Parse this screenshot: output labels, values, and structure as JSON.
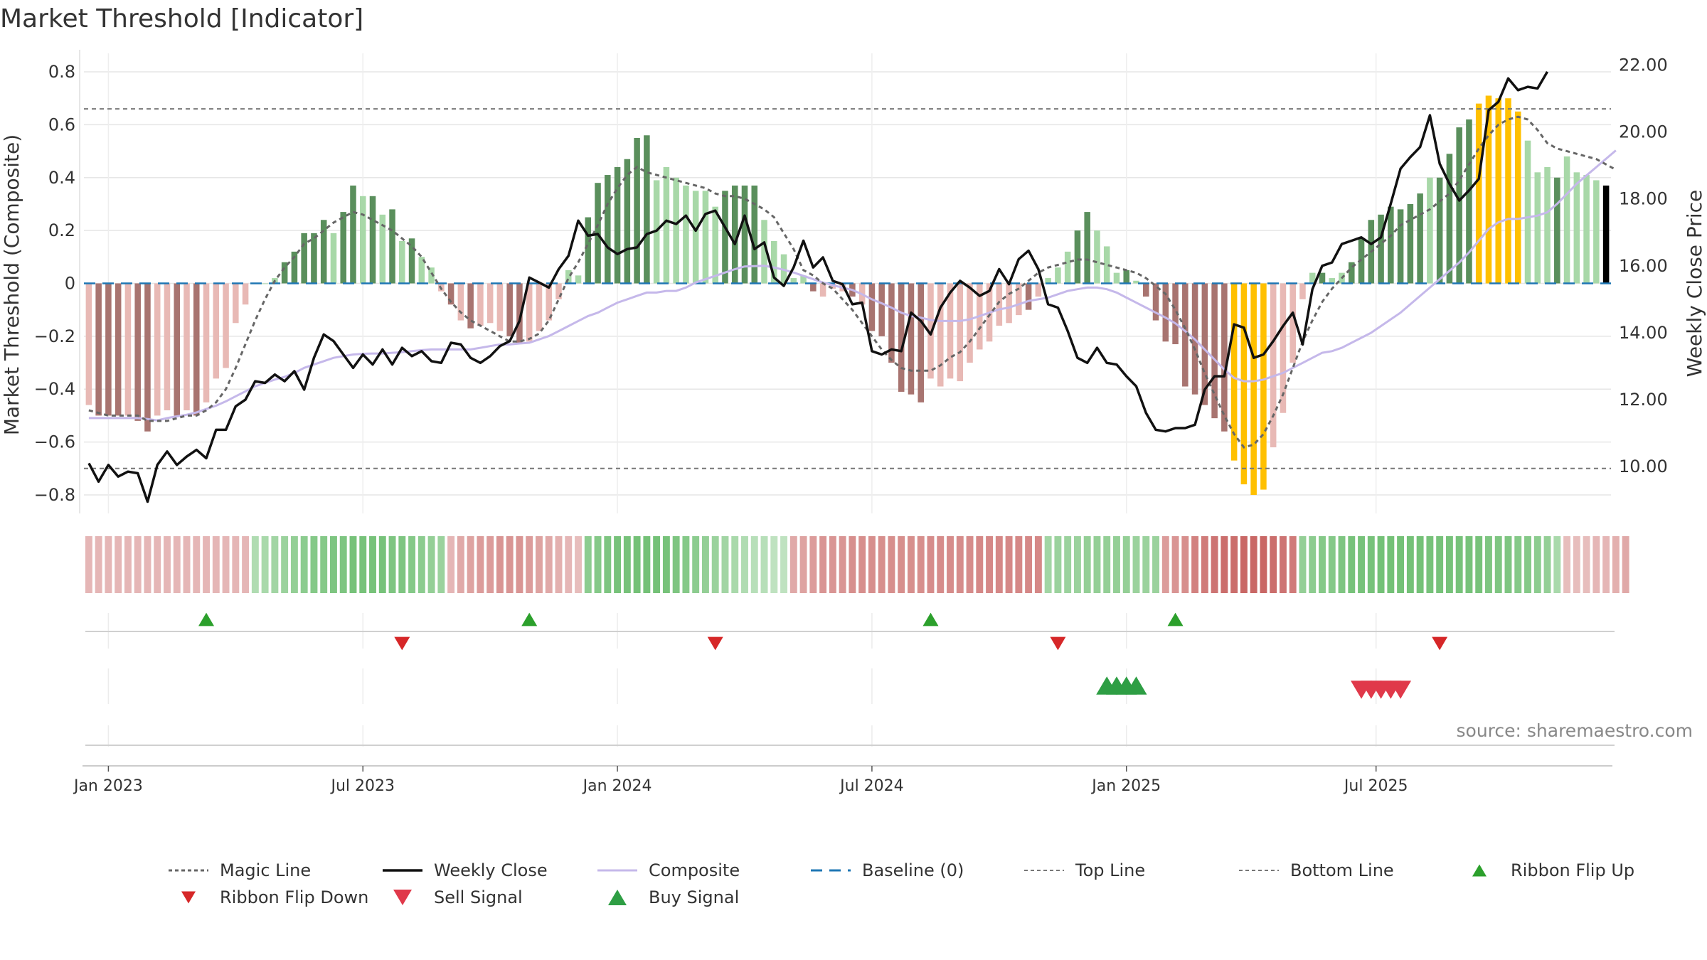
{
  "title": "Market Threshold [Indicator]",
  "source": "source: sharemaestro.com",
  "colors": {
    "bull_dark": "#5a8f5c",
    "bull_light": "#a8d8a8",
    "bear_dark": "#a87470",
    "bear_light": "#e8b9b5",
    "extreme": "#ffc000",
    "weekly_close": "#111111",
    "composite_line": "#c5b8ea",
    "magic_line": "#666666",
    "baseline": "#1f77b4",
    "threshold_lines": "#777777",
    "flip_up": "#2ca02c",
    "flip_down": "#d62728",
    "sell": "#e0394a",
    "buy": "#2e9e44"
  },
  "chart_data": {
    "type": "bar",
    "title": "Market Threshold [Indicator]",
    "ylabel": "Market Threshold (Composite)",
    "y2label": "Weekly Close Price",
    "ylim": [
      -0.87,
      0.87
    ],
    "y2lim": [
      8.6,
      22.35
    ],
    "yticks": [
      {
        "value": 0.8,
        "label": "0.8"
      },
      {
        "value": 0.6,
        "label": "0.6"
      },
      {
        "value": 0.4,
        "label": "0.4"
      },
      {
        "value": 0.2,
        "label": "0.2"
      },
      {
        "value": 0,
        "label": "0"
      },
      {
        "value": -0.2,
        "label": "−0.2"
      },
      {
        "value": -0.4,
        "label": "−0.4"
      },
      {
        "value": -0.6,
        "label": "−0.6"
      },
      {
        "value": -0.8,
        "label": "−0.8"
      }
    ],
    "y2ticks": [
      {
        "value": 22,
        "label": "22.00"
      },
      {
        "value": 20,
        "label": "20.00"
      },
      {
        "value": 18,
        "label": "18.00"
      },
      {
        "value": 16,
        "label": "16.00"
      },
      {
        "value": 14,
        "label": "14.00"
      },
      {
        "value": 12,
        "label": "12.00"
      },
      {
        "value": 10,
        "label": "10.00"
      }
    ],
    "xticks": [
      {
        "week": 2,
        "label": "Jan 2023"
      },
      {
        "week": 28,
        "label": "Jul 2023"
      },
      {
        "week": 54,
        "label": "Jan 2024"
      },
      {
        "week": 80,
        "label": "Jul 2024"
      },
      {
        "week": 106,
        "label": "Jan 2025"
      },
      {
        "week": 131.5,
        "label": "Jul 2025"
      }
    ],
    "grid": true,
    "legend_position": "bottom",
    "top_line": 0.66,
    "bottom_line": -0.7,
    "baseline": 0,
    "composite": [
      -0.46,
      -0.5,
      -0.5,
      -0.5,
      -0.5,
      -0.52,
      -0.56,
      -0.5,
      -0.48,
      -0.5,
      -0.48,
      -0.5,
      -0.45,
      -0.36,
      -0.32,
      -0.15,
      -0.08,
      0,
      0,
      0.02,
      0.08,
      0.12,
      0.19,
      0.19,
      0.24,
      0.19,
      0.27,
      0.37,
      0.33,
      0.33,
      0.26,
      0.28,
      0.16,
      0.17,
      0.1,
      0.06,
      -0.03,
      -0.08,
      -0.14,
      -0.17,
      -0.16,
      -0.15,
      -0.18,
      -0.2,
      -0.23,
      -0.22,
      -0.18,
      -0.14,
      -0.06,
      0.05,
      0.03,
      0.25,
      0.38,
      0.41,
      0.44,
      0.47,
      0.55,
      0.56,
      0.39,
      0.44,
      0.4,
      0.37,
      0.35,
      0.35,
      0.29,
      0.35,
      0.37,
      0.37,
      0.37,
      0.24,
      0.16,
      0.11,
      0.02,
      0.03,
      -0.03,
      -0.05,
      -0.02,
      -0.03,
      -0.05,
      -0.08,
      -0.18,
      -0.2,
      -0.3,
      -0.41,
      -0.42,
      -0.45,
      -0.36,
      -0.39,
      -0.36,
      -0.37,
      -0.3,
      -0.25,
      -0.22,
      -0.16,
      -0.15,
      -0.12,
      -0.1,
      -0.05,
      0.02,
      0.06,
      0.12,
      0.2,
      0.27,
      0.2,
      0.14,
      0.04,
      0.05,
      0.01,
      -0.05,
      -0.14,
      -0.22,
      -0.23,
      -0.39,
      -0.42,
      -0.46,
      -0.51,
      -0.56,
      -0.67,
      -0.76,
      -0.8,
      -0.78,
      -0.62,
      -0.49,
      -0.3,
      -0.06,
      0.04,
      0.04,
      0.02,
      0.04,
      0.08,
      0.17,
      0.24,
      0.26,
      0.29,
      0.28,
      0.3,
      0.34,
      0.4,
      0.4,
      0.49,
      0.59,
      0.62,
      0.68,
      0.71,
      0.7,
      0.7,
      0.65,
      0.54,
      0.42,
      0.44,
      0.4,
      0.48,
      0.42,
      0.41,
      0.39,
      0.37
    ],
    "bar_category": [
      "bear_light",
      "bear_dark",
      "bear_dark",
      "bear_dark",
      "bear_light",
      "bear_dark",
      "bear_dark",
      "bear_light",
      "bear_light",
      "bear_dark",
      "bear_light",
      "bear_dark",
      "bear_light",
      "bear_light",
      "bear_light",
      "bear_light",
      "bear_light",
      "bull_light",
      "bull_light",
      "bull_light",
      "bull_dark",
      "bull_dark",
      "bull_dark",
      "bull_dark",
      "bull_dark",
      "bull_light",
      "bull_dark",
      "bull_dark",
      "bull_light",
      "bull_dark",
      "bull_light",
      "bull_dark",
      "bull_light",
      "bull_dark",
      "bull_light",
      "bull_light",
      "bear_light",
      "bear_dark",
      "bear_light",
      "bear_dark",
      "bear_light",
      "bear_light",
      "bear_light",
      "bear_dark",
      "bear_dark",
      "bear_light",
      "bear_light",
      "bear_light",
      "bear_light",
      "bull_light",
      "bull_light",
      "bull_dark",
      "bull_dark",
      "bull_dark",
      "bull_dark",
      "bull_dark",
      "bull_dark",
      "bull_dark",
      "bull_light",
      "bull_light",
      "bull_light",
      "bull_light",
      "bull_light",
      "bull_light",
      "bull_light",
      "bull_dark",
      "bull_dark",
      "bull_dark",
      "bull_dark",
      "bull_light",
      "bull_light",
      "bull_light",
      "bull_light",
      "bull_light",
      "bear_dark",
      "bear_light",
      "bear_light",
      "bear_light",
      "bear_dark",
      "bear_light",
      "bear_dark",
      "bear_dark",
      "bear_dark",
      "bear_dark",
      "bear_dark",
      "bear_dark",
      "bear_light",
      "bear_light",
      "bear_light",
      "bear_light",
      "bear_light",
      "bear_light",
      "bear_light",
      "bear_light",
      "bear_light",
      "bear_light",
      "bear_dark",
      "bear_light",
      "bull_light",
      "bull_light",
      "bull_light",
      "bull_dark",
      "bull_dark",
      "bull_light",
      "bull_light",
      "bull_light",
      "bull_dark",
      "bull_light",
      "bear_dark",
      "bear_dark",
      "bear_dark",
      "bear_dark",
      "bear_dark",
      "bear_dark",
      "bear_dark",
      "bear_dark",
      "bear_dark",
      "extreme",
      "extreme",
      "extreme",
      "extreme",
      "bear_light",
      "bear_light",
      "bear_light",
      "bear_light",
      "bull_light",
      "bull_dark",
      "bull_light",
      "bull_light",
      "bull_dark",
      "bull_dark",
      "bull_dark",
      "bull_dark",
      "bull_dark",
      "bull_dark",
      "bull_dark",
      "bull_dark",
      "bull_light",
      "bull_dark",
      "bull_dark",
      "bull_dark",
      "bull_dark",
      "extreme",
      "extreme",
      "extreme",
      "extreme",
      "extreme",
      "bull_light",
      "bull_light",
      "bull_light",
      "bull_dark",
      "bull_light",
      "bull_light",
      "bull_light",
      "bull_light"
    ],
    "weekly_close": [
      10.1,
      9.55,
      10.05,
      9.7,
      9.85,
      9.8,
      8.95,
      10.05,
      10.45,
      10.05,
      10.3,
      10.5,
      10.25,
      11.1,
      11.1,
      11.8,
      12.0,
      12.55,
      12.5,
      12.75,
      12.55,
      12.85,
      12.3,
      13.25,
      13.95,
      13.75,
      13.35,
      12.95,
      13.35,
      13.05,
      13.5,
      13.05,
      13.55,
      13.3,
      13.45,
      13.15,
      13.1,
      13.7,
      13.65,
      13.25,
      13.1,
      13.3,
      13.6,
      13.75,
      14.35,
      15.65,
      15.5,
      15.35,
      15.9,
      16.3,
      17.35,
      16.9,
      16.95,
      16.55,
      16.35,
      16.5,
      16.55,
      16.95,
      17.05,
      17.35,
      17.25,
      17.5,
      17.05,
      17.55,
      17.65,
      17.15,
      16.65,
      17.5,
      16.5,
      16.7,
      15.65,
      15.4,
      15.95,
      16.75,
      15.95,
      16.25,
      15.55,
      15.45,
      14.85,
      14.9,
      13.45,
      13.35,
      13.5,
      13.45,
      14.6,
      14.35,
      13.95,
      14.75,
      15.2,
      15.55,
      15.35,
      15.1,
      15.25,
      15.9,
      15.45,
      16.2,
      16.45,
      15.9,
      14.85,
      14.75,
      14.05,
      13.25,
      13.1,
      13.55,
      13.1,
      13.05,
      12.7,
      12.4,
      11.6,
      11.1,
      11.05,
      11.15,
      11.15,
      11.25,
      12.3,
      12.7,
      12.7,
      14.25,
      14.15,
      13.25,
      13.35,
      13.75,
      14.2,
      14.6,
      13.65,
      15.3,
      16.0,
      16.1,
      16.65,
      16.75,
      16.85,
      16.65,
      16.85,
      17.85,
      18.9,
      19.25,
      19.55,
      20.5,
      19.05,
      18.45,
      17.95,
      18.25,
      18.6,
      20.65,
      20.9,
      21.6,
      21.25,
      21.35,
      21.3,
      21.8
    ],
    "composite_line": [
      11.45,
      11.45,
      11.45,
      11.45,
      11.45,
      11.45,
      11.42,
      11.38,
      11.45,
      11.5,
      11.55,
      11.62,
      11.72,
      11.82,
      11.95,
      12.1,
      12.25,
      12.4,
      12.5,
      12.6,
      12.68,
      12.8,
      12.95,
      13.05,
      13.15,
      13.25,
      13.3,
      13.35,
      13.37,
      13.38,
      13.38,
      13.4,
      13.42,
      13.45,
      13.48,
      13.5,
      13.5,
      13.5,
      13.5,
      13.5,
      13.55,
      13.6,
      13.65,
      13.65,
      13.68,
      13.7,
      13.8,
      13.9,
      14.05,
      14.2,
      14.35,
      14.5,
      14.6,
      14.75,
      14.9,
      15.0,
      15.1,
      15.2,
      15.2,
      15.25,
      15.25,
      15.35,
      15.5,
      15.6,
      15.7,
      15.8,
      15.9,
      15.98,
      15.99,
      16.0,
      15.95,
      15.88,
      15.8,
      15.7,
      15.6,
      15.5,
      15.42,
      15.35,
      15.28,
      15.15,
      15.0,
      14.88,
      14.75,
      14.6,
      14.5,
      14.45,
      14.38,
      14.35,
      14.35,
      14.35,
      14.4,
      14.5,
      14.6,
      14.7,
      14.75,
      14.85,
      14.95,
      15.0,
      15.05,
      15.15,
      15.25,
      15.3,
      15.35,
      15.35,
      15.3,
      15.2,
      15.05,
      14.9,
      14.75,
      14.6,
      14.45,
      14.28,
      14.05,
      13.8,
      13.5,
      13.2,
      12.9,
      12.65,
      12.55,
      12.55,
      12.6,
      12.7,
      12.8,
      12.95,
      13.1,
      13.25,
      13.4,
      13.45,
      13.55,
      13.7,
      13.85,
      14.0,
      14.2,
      14.4,
      14.6,
      14.85,
      15.1,
      15.35,
      15.6,
      15.85,
      16.1,
      16.4,
      16.75,
      17.1,
      17.3,
      17.4,
      17.4,
      17.45,
      17.5,
      17.6,
      17.85,
      18.15,
      18.45,
      18.7,
      18.95,
      19.2,
      19.45
    ],
    "magic_line": [
      -0.48,
      -0.49,
      -0.5,
      -0.5,
      -0.5,
      -0.5,
      -0.52,
      -0.52,
      -0.52,
      -0.51,
      -0.5,
      -0.5,
      -0.48,
      -0.45,
      -0.4,
      -0.32,
      -0.23,
      -0.14,
      -0.06,
      0.01,
      0.06,
      0.1,
      0.15,
      0.17,
      0.2,
      0.23,
      0.25,
      0.27,
      0.26,
      0.24,
      0.22,
      0.2,
      0.17,
      0.14,
      0.1,
      0.04,
      -0.02,
      -0.07,
      -0.11,
      -0.14,
      -0.16,
      -0.18,
      -0.2,
      -0.22,
      -0.22,
      -0.21,
      -0.19,
      -0.14,
      -0.06,
      0.02,
      0.08,
      0.15,
      0.22,
      0.3,
      0.36,
      0.41,
      0.44,
      0.42,
      0.41,
      0.4,
      0.39,
      0.38,
      0.37,
      0.36,
      0.34,
      0.33,
      0.33,
      0.32,
      0.3,
      0.28,
      0.25,
      0.19,
      0.13,
      0.05,
      0.03,
      0.0,
      -0.02,
      -0.06,
      -0.1,
      -0.15,
      -0.2,
      -0.25,
      -0.29,
      -0.32,
      -0.33,
      -0.33,
      -0.33,
      -0.31,
      -0.28,
      -0.26,
      -0.22,
      -0.17,
      -0.12,
      -0.07,
      -0.04,
      -0.02,
      0.01,
      0.04,
      0.06,
      0.07,
      0.08,
      0.09,
      0.09,
      0.08,
      0.07,
      0.06,
      0.05,
      0.04,
      0.02,
      -0.01,
      -0.04,
      -0.1,
      -0.17,
      -0.25,
      -0.34,
      -0.42,
      -0.5,
      -0.57,
      -0.62,
      -0.61,
      -0.57,
      -0.5,
      -0.42,
      -0.32,
      -0.22,
      -0.14,
      -0.07,
      -0.02,
      0.02,
      0.06,
      0.09,
      0.12,
      0.15,
      0.18,
      0.22,
      0.24,
      0.26,
      0.28,
      0.31,
      0.34,
      0.39,
      0.45,
      0.51,
      0.56,
      0.6,
      0.62,
      0.63,
      0.62,
      0.58,
      0.53,
      0.51,
      0.5,
      0.49,
      0.48,
      0.47,
      0.45,
      0.43
    ],
    "ribbon": [
      -0.3,
      -0.3,
      -0.3,
      -0.3,
      -0.3,
      -0.3,
      -0.3,
      -0.3,
      -0.3,
      -0.3,
      -0.3,
      -0.3,
      -0.3,
      -0.3,
      -0.3,
      -0.3,
      -0.3,
      0.3,
      0.35,
      0.4,
      0.45,
      0.5,
      0.55,
      0.6,
      0.6,
      0.65,
      0.65,
      0.7,
      0.7,
      0.7,
      0.7,
      0.65,
      0.65,
      0.6,
      0.55,
      0.5,
      0.45,
      -0.3,
      -0.4,
      -0.45,
      -0.5,
      -0.5,
      -0.55,
      -0.55,
      -0.55,
      -0.5,
      -0.45,
      -0.4,
      -0.35,
      -0.3,
      -0.25,
      0.55,
      0.6,
      0.65,
      0.7,
      0.7,
      0.72,
      0.72,
      0.72,
      0.7,
      0.65,
      0.6,
      0.55,
      0.5,
      0.45,
      0.4,
      0.35,
      0.3,
      0.25,
      0.25,
      0.2,
      0.2,
      -0.4,
      -0.45,
      -0.5,
      -0.55,
      -0.55,
      -0.55,
      -0.6,
      -0.6,
      -0.6,
      -0.6,
      -0.6,
      -0.6,
      -0.6,
      -0.6,
      -0.62,
      -0.62,
      -0.62,
      -0.62,
      -0.62,
      -0.65,
      -0.65,
      -0.65,
      -0.65,
      -0.65,
      -0.65,
      -0.65,
      0.4,
      0.45,
      0.45,
      0.45,
      0.5,
      0.5,
      0.5,
      0.5,
      0.5,
      0.45,
      0.45,
      0.45,
      -0.5,
      -0.55,
      -0.6,
      -0.7,
      -0.75,
      -0.8,
      -0.85,
      -0.85,
      -0.9,
      -0.9,
      -0.9,
      -0.85,
      -0.8,
      -0.75,
      0.5,
      0.55,
      0.6,
      0.6,
      0.65,
      0.7,
      0.7,
      0.7,
      0.72,
      0.72,
      0.72,
      0.72,
      0.72,
      0.7,
      0.7,
      0.7,
      0.7,
      0.7,
      0.7,
      0.65,
      0.65,
      0.65,
      0.6,
      0.6,
      0.55,
      0.5,
      0.35,
      -0.25,
      -0.25,
      -0.25,
      -0.3,
      -0.3,
      -0.35,
      -0.4
    ],
    "ribbon_flip_up_weeks": [
      12,
      45,
      86,
      111
    ],
    "ribbon_flip_down_weeks": [
      32,
      64,
      99,
      138
    ],
    "buy_signal_weeks": [
      104,
      105,
      106,
      107
    ],
    "sell_signal_weeks": [
      130,
      131,
      132,
      133,
      134
    ],
    "legend": [
      {
        "key": "magic",
        "label": "Magic Line"
      },
      {
        "key": "close",
        "label": "Weekly Close"
      },
      {
        "key": "composite",
        "label": "Composite"
      },
      {
        "key": "baseline",
        "label": "Baseline (0)"
      },
      {
        "key": "top",
        "label": "Top Line"
      },
      {
        "key": "bottom",
        "label": "Bottom Line"
      },
      {
        "key": "flipup",
        "label": "Ribbon Flip Up"
      },
      {
        "key": "flipdown",
        "label": "Ribbon Flip Down"
      },
      {
        "key": "sell",
        "label": "Sell Signal"
      },
      {
        "key": "buy",
        "label": "Buy Signal"
      }
    ]
  }
}
